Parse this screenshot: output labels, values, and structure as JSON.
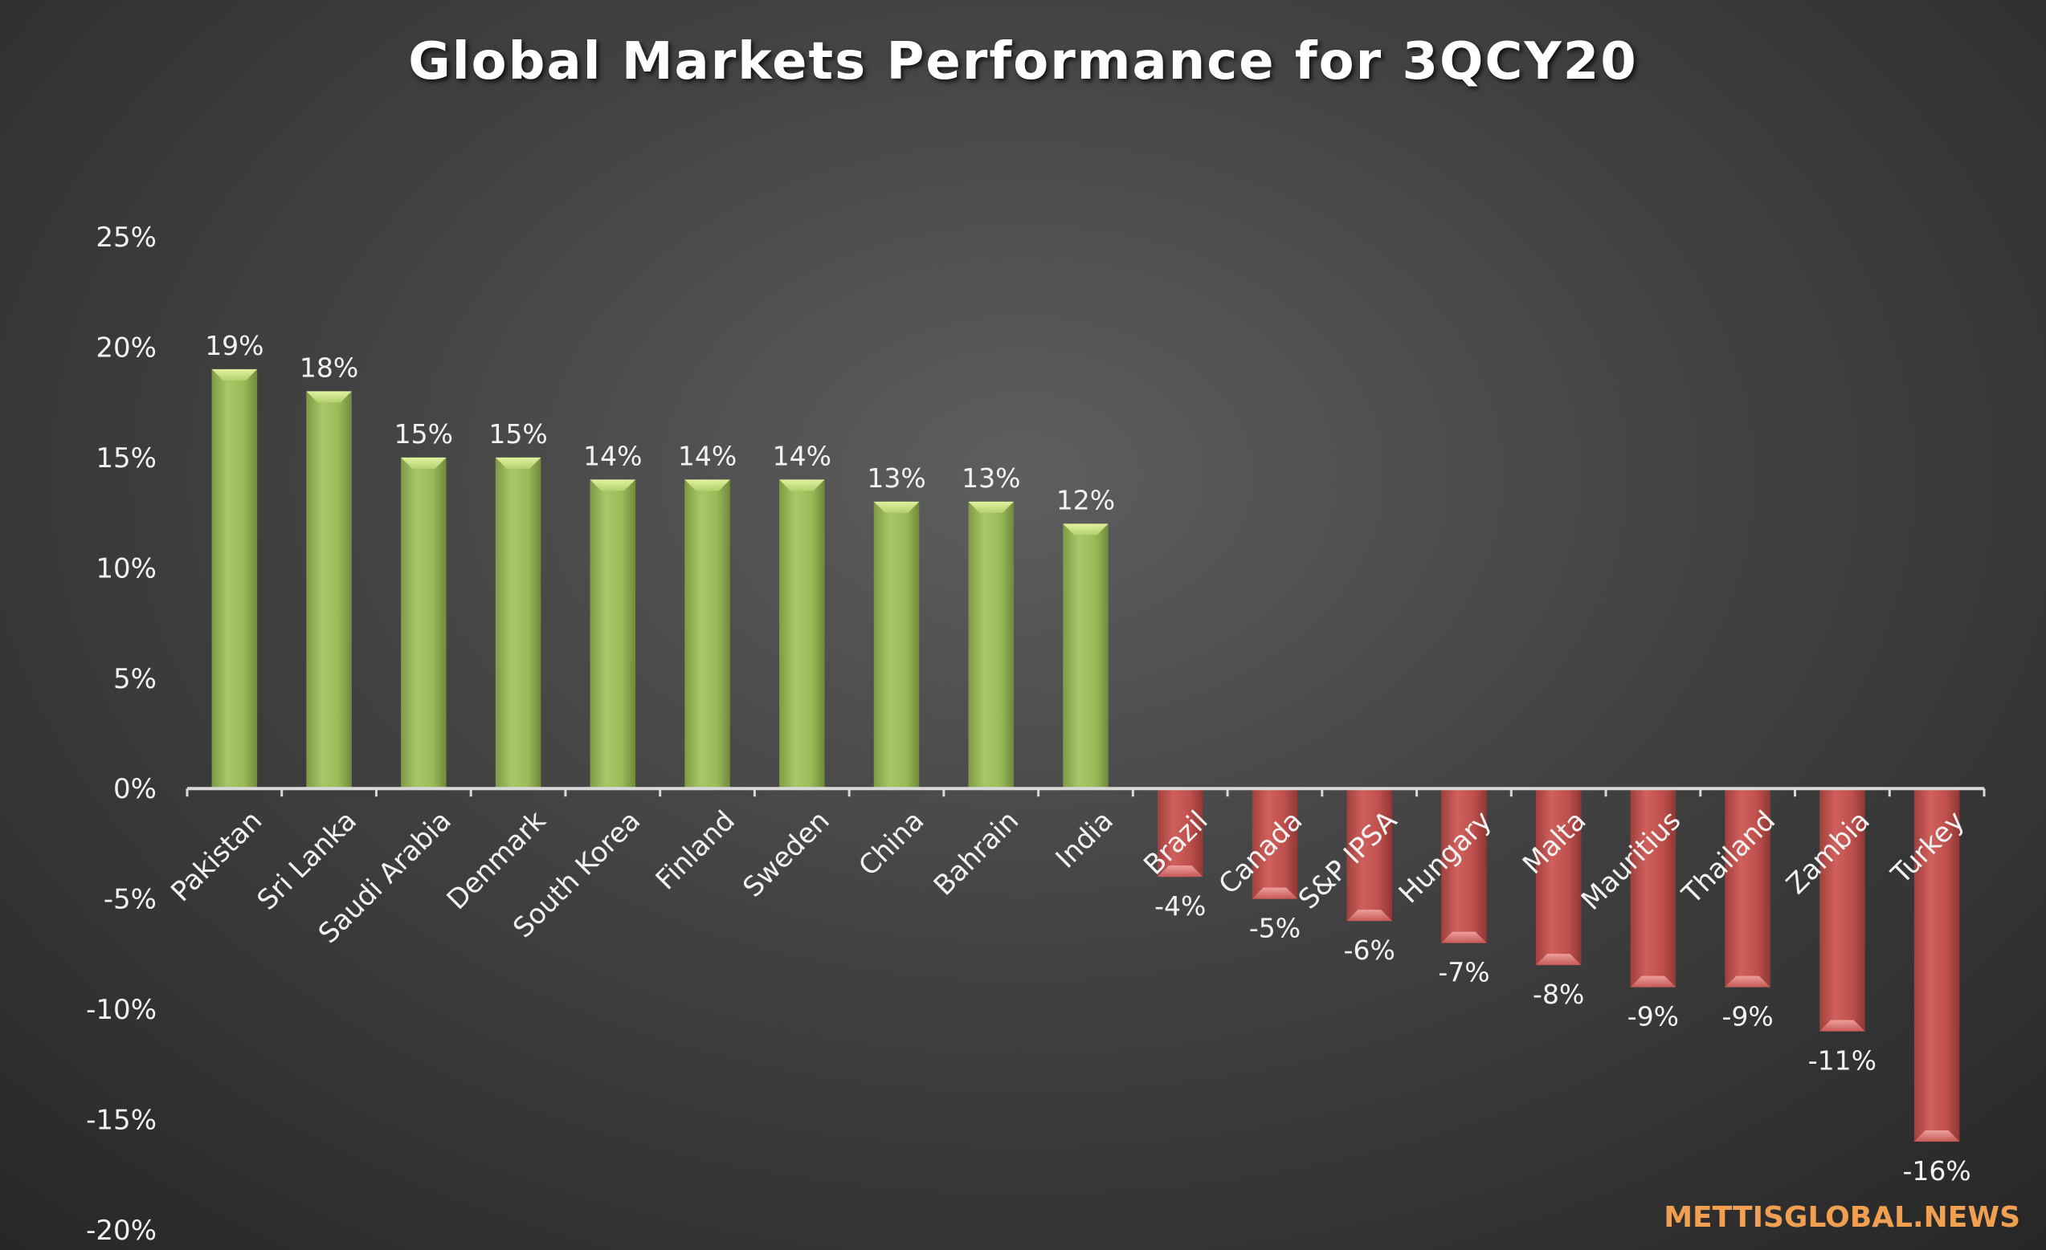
{
  "chart_data": {
    "type": "bar",
    "title": "Global Markets Performance for 3QCY20",
    "xlabel": "",
    "ylabel": "",
    "ylim": [
      -0.2,
      0.25
    ],
    "yticks": [
      0.25,
      0.2,
      0.15,
      0.1,
      0.05,
      0.0,
      -0.05,
      -0.1,
      -0.15,
      -0.2
    ],
    "ytick_labels": [
      "25%",
      "20%",
      "15%",
      "10%",
      "5%",
      "0%",
      "-5%",
      "-10%",
      "-15%",
      "-20%"
    ],
    "grid": false,
    "legend": "none",
    "categories": [
      "Pakistan",
      "Sri Lanka",
      "Saudi Arabia",
      "Denmark",
      "South Korea",
      "Finland",
      "Sweden",
      "China",
      "Bahrain",
      "India",
      "Brazil",
      "Canada",
      "S&P IPSA",
      "Hungary",
      "Malta",
      "Mauritius",
      "Thailand",
      "Zambia",
      "Turkey"
    ],
    "values": [
      0.19,
      0.18,
      0.15,
      0.15,
      0.14,
      0.14,
      0.14,
      0.13,
      0.13,
      0.12,
      -0.04,
      -0.05,
      -0.06,
      -0.07,
      -0.08,
      -0.09,
      -0.09,
      -0.11,
      -0.16
    ],
    "data_labels": [
      "19%",
      "18%",
      "15%",
      "15%",
      "14%",
      "14%",
      "14%",
      "13%",
      "13%",
      "12%",
      "-4%",
      "-5%",
      "-6%",
      "-7%",
      "-8%",
      "-9%",
      "-9%",
      "-11%",
      "-16%"
    ],
    "colors": {
      "positive": "#9bbb59",
      "negative": "#c0504d"
    }
  },
  "watermark": "METTISGLOBAL.NEWS"
}
